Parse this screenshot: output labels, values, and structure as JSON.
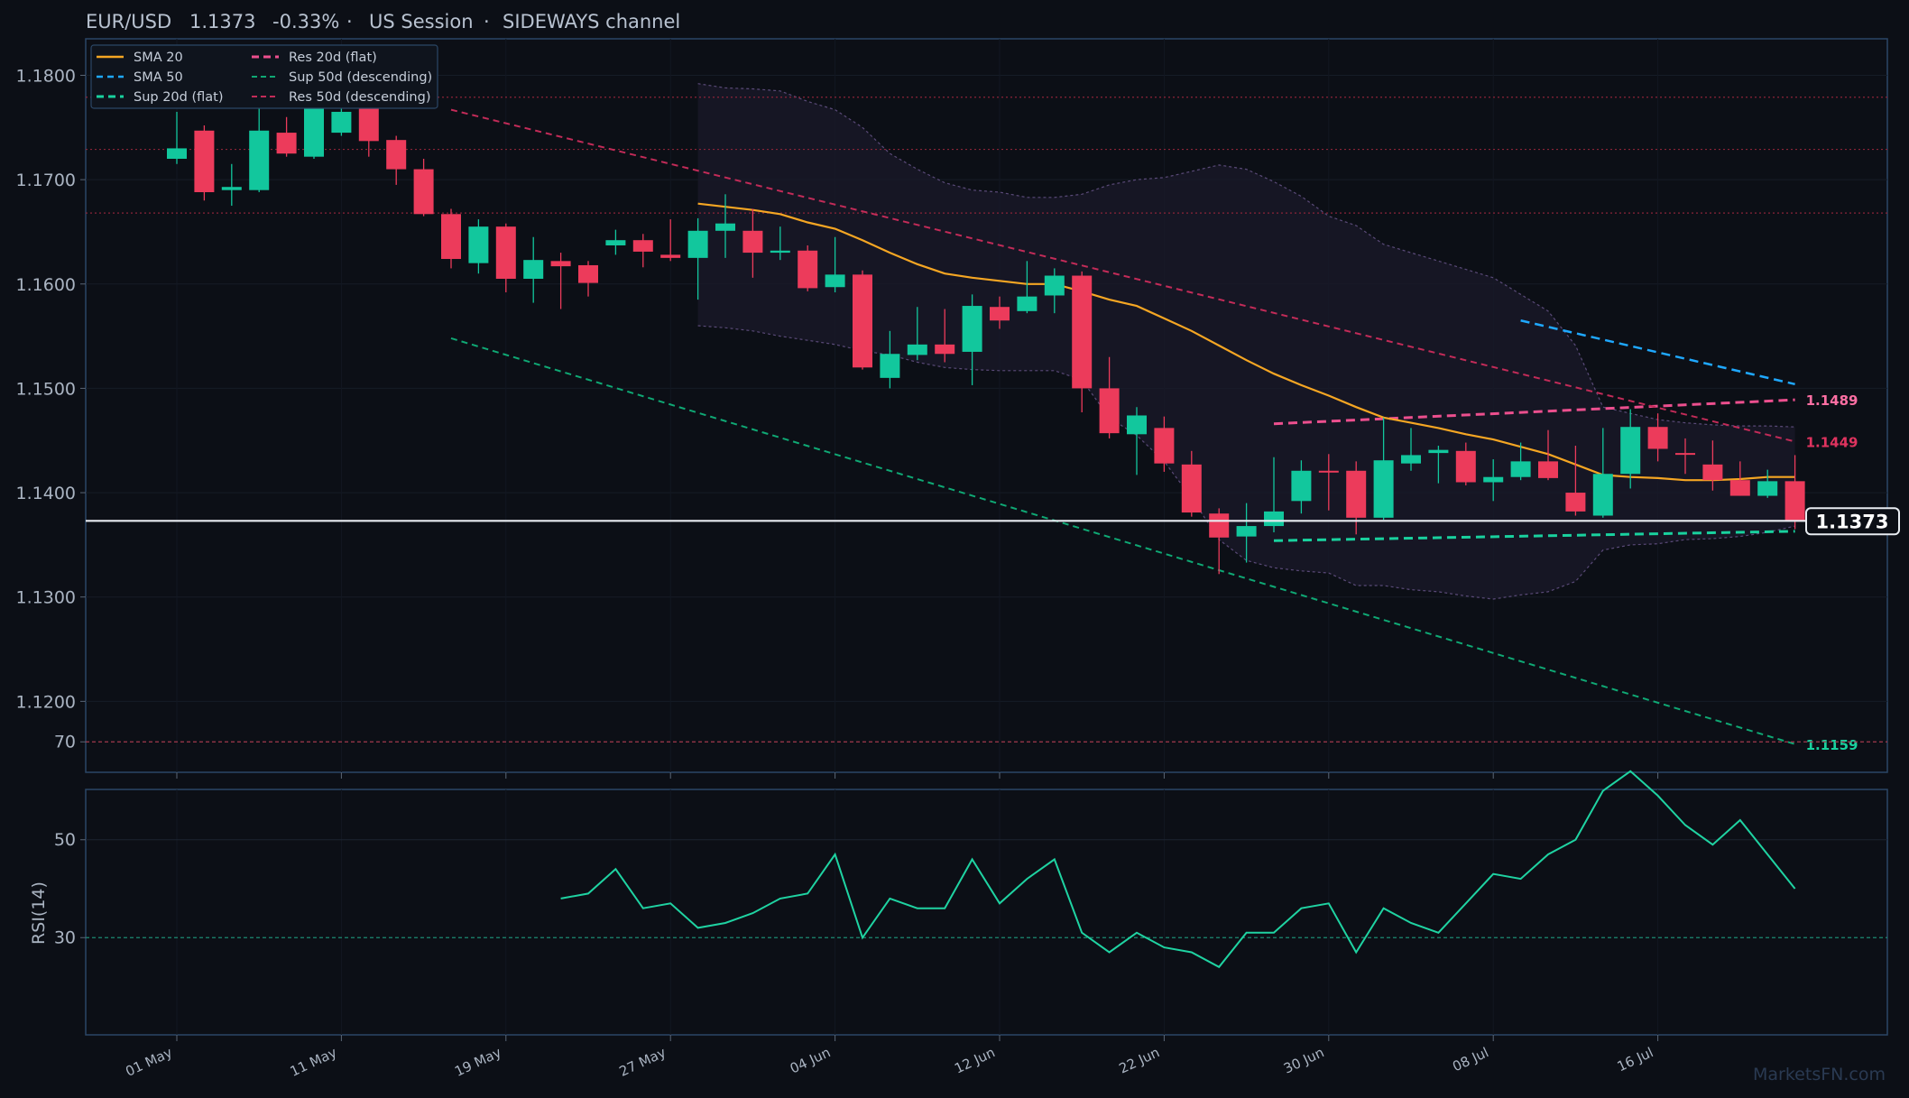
{
  "header": {
    "symbol": "EUR/USD",
    "price": "1.1373",
    "change": "-0.33%",
    "session": "US Session",
    "channel": "SIDEWAYS channel",
    "sep": "·"
  },
  "watermark": "MarketsFN.com",
  "colors": {
    "background": "#0c0f16",
    "up": "#12c79d",
    "down": "#ec3b5b",
    "sma20": "#f5a623",
    "sma50": "#1fa8ff",
    "res20": "#ec4f8e",
    "sup20": "#19d19e",
    "res50": "#c22b58",
    "sup50": "#0fa874",
    "rsi": "#1fd3a2",
    "current": "#e8ecf1"
  },
  "chart_data": {
    "type": "candlestick",
    "title": "EUR/USD",
    "ylim": [
      1.1132,
      1.1835
    ],
    "yticks": [
      1.12,
      1.13,
      1.14,
      1.15,
      1.16,
      1.17,
      1.18
    ],
    "x_tick_labels": [
      "01 May",
      "11 May",
      "19 May",
      "27 May",
      "04 Jun",
      "12 Jun",
      "22 Jun",
      "30 Jun",
      "08 Jul",
      "16 Jul"
    ],
    "x_tick_index": [
      0,
      6,
      12,
      18,
      24,
      30,
      36,
      42,
      48,
      54
    ],
    "candles": [
      {
        "o": 1.172,
        "h": 1.1765,
        "l": 1.1715,
        "c": 1.173
      },
      {
        "o": 1.1747,
        "h": 1.1752,
        "l": 1.168,
        "c": 1.1688
      },
      {
        "o": 1.169,
        "h": 1.1715,
        "l": 1.1675,
        "c": 1.1693
      },
      {
        "o": 1.169,
        "h": 1.178,
        "l": 1.1688,
        "c": 1.1747
      },
      {
        "o": 1.1745,
        "h": 1.176,
        "l": 1.1722,
        "c": 1.1725
      },
      {
        "o": 1.1722,
        "h": 1.179,
        "l": 1.172,
        "c": 1.1785
      },
      {
        "o": 1.1745,
        "h": 1.1785,
        "l": 1.1742,
        "c": 1.1765
      },
      {
        "o": 1.178,
        "h": 1.179,
        "l": 1.1722,
        "c": 1.1737
      },
      {
        "o": 1.1738,
        "h": 1.1742,
        "l": 1.1695,
        "c": 1.171
      },
      {
        "o": 1.171,
        "h": 1.172,
        "l": 1.1665,
        "c": 1.1667
      },
      {
        "o": 1.1667,
        "h": 1.1672,
        "l": 1.1615,
        "c": 1.1624
      },
      {
        "o": 1.162,
        "h": 1.1662,
        "l": 1.161,
        "c": 1.1655
      },
      {
        "o": 1.1655,
        "h": 1.1658,
        "l": 1.1592,
        "c": 1.1605
      },
      {
        "o": 1.1605,
        "h": 1.1645,
        "l": 1.1582,
        "c": 1.1623
      },
      {
        "o": 1.1622,
        "h": 1.163,
        "l": 1.1576,
        "c": 1.1617
      },
      {
        "o": 1.1618,
        "h": 1.1622,
        "l": 1.1588,
        "c": 1.1601
      },
      {
        "o": 1.1637,
        "h": 1.1652,
        "l": 1.1628,
        "c": 1.1642
      },
      {
        "o": 1.1642,
        "h": 1.1648,
        "l": 1.1616,
        "c": 1.1631
      },
      {
        "o": 1.1628,
        "h": 1.1662,
        "l": 1.1622,
        "c": 1.1625
      },
      {
        "o": 1.1625,
        "h": 1.1663,
        "l": 1.1585,
        "c": 1.1651
      },
      {
        "o": 1.1651,
        "h": 1.1686,
        "l": 1.1625,
        "c": 1.1658
      },
      {
        "o": 1.1651,
        "h": 1.1672,
        "l": 1.1606,
        "c": 1.163
      },
      {
        "o": 1.163,
        "h": 1.1655,
        "l": 1.1623,
        "c": 1.1632
      },
      {
        "o": 1.1632,
        "h": 1.1637,
        "l": 1.1593,
        "c": 1.1596
      },
      {
        "o": 1.1597,
        "h": 1.1645,
        "l": 1.1592,
        "c": 1.1609
      },
      {
        "o": 1.1609,
        "h": 1.1613,
        "l": 1.1518,
        "c": 1.152
      },
      {
        "o": 1.151,
        "h": 1.1555,
        "l": 1.15,
        "c": 1.1533
      },
      {
        "o": 1.1532,
        "h": 1.1578,
        "l": 1.1527,
        "c": 1.1542
      },
      {
        "o": 1.1542,
        "h": 1.1576,
        "l": 1.1525,
        "c": 1.1533
      },
      {
        "o": 1.1535,
        "h": 1.159,
        "l": 1.1503,
        "c": 1.1579
      },
      {
        "o": 1.1578,
        "h": 1.1588,
        "l": 1.1557,
        "c": 1.1565
      },
      {
        "o": 1.1574,
        "h": 1.1622,
        "l": 1.1572,
        "c": 1.1588
      },
      {
        "o": 1.1589,
        "h": 1.1615,
        "l": 1.1572,
        "c": 1.1608
      },
      {
        "o": 1.1608,
        "h": 1.1612,
        "l": 1.1477,
        "c": 1.15
      },
      {
        "o": 1.15,
        "h": 1.153,
        "l": 1.1452,
        "c": 1.1457
      },
      {
        "o": 1.1456,
        "h": 1.1482,
        "l": 1.1417,
        "c": 1.1474
      },
      {
        "o": 1.1462,
        "h": 1.1473,
        "l": 1.142,
        "c": 1.1428
      },
      {
        "o": 1.1427,
        "h": 1.144,
        "l": 1.1377,
        "c": 1.1381
      },
      {
        "o": 1.138,
        "h": 1.1385,
        "l": 1.1322,
        "c": 1.1357
      },
      {
        "o": 1.1358,
        "h": 1.139,
        "l": 1.1333,
        "c": 1.1368
      },
      {
        "o": 1.1368,
        "h": 1.1434,
        "l": 1.1362,
        "c": 1.1382
      },
      {
        "o": 1.1392,
        "h": 1.1431,
        "l": 1.138,
        "c": 1.1421
      },
      {
        "o": 1.1421,
        "h": 1.1437,
        "l": 1.1383,
        "c": 1.142
      },
      {
        "o": 1.1421,
        "h": 1.143,
        "l": 1.136,
        "c": 1.1376
      },
      {
        "o": 1.1376,
        "h": 1.1472,
        "l": 1.1374,
        "c": 1.1431
      },
      {
        "o": 1.1428,
        "h": 1.1462,
        "l": 1.1421,
        "c": 1.1436
      },
      {
        "o": 1.1438,
        "h": 1.1445,
        "l": 1.1409,
        "c": 1.1441
      },
      {
        "o": 1.144,
        "h": 1.1448,
        "l": 1.1407,
        "c": 1.141
      },
      {
        "o": 1.141,
        "h": 1.1432,
        "l": 1.1392,
        "c": 1.1415
      },
      {
        "o": 1.1415,
        "h": 1.1448,
        "l": 1.1412,
        "c": 1.143
      },
      {
        "o": 1.143,
        "h": 1.146,
        "l": 1.1412,
        "c": 1.1414
      },
      {
        "o": 1.14,
        "h": 1.1445,
        "l": 1.1378,
        "c": 1.1382
      },
      {
        "o": 1.1378,
        "h": 1.1462,
        "l": 1.1376,
        "c": 1.1418
      },
      {
        "o": 1.1418,
        "h": 1.148,
        "l": 1.1404,
        "c": 1.1463
      },
      {
        "o": 1.1463,
        "h": 1.1476,
        "l": 1.143,
        "c": 1.1442
      },
      {
        "o": 1.1438,
        "h": 1.1452,
        "l": 1.1418,
        "c": 1.1437
      },
      {
        "o": 1.1427,
        "h": 1.145,
        "l": 1.1402,
        "c": 1.1412
      },
      {
        "o": 1.1412,
        "h": 1.143,
        "l": 1.1397,
        "c": 1.1397
      },
      {
        "o": 1.1397,
        "h": 1.1422,
        "l": 1.1395,
        "c": 1.1411
      },
      {
        "o": 1.1411,
        "h": 1.1436,
        "l": 1.1365,
        "c": 1.1373
      }
    ],
    "sma20": {
      "start": 19,
      "values": [
        1.1677,
        1.1674,
        1.1671,
        1.1667,
        1.1659,
        1.1653,
        1.1642,
        1.163,
        1.1619,
        1.161,
        1.1606,
        1.1603,
        1.16,
        1.16,
        1.1593,
        1.1585,
        1.1579,
        1.1567,
        1.1555,
        1.1541,
        1.1527,
        1.1514,
        1.1503,
        1.1493,
        1.1482,
        1.1472,
        1.1467,
        1.1462,
        1.1456,
        1.1451,
        1.1444,
        1.1437,
        1.1427,
        1.1417,
        1.1415,
        1.1414,
        1.1412,
        1.1412,
        1.1413,
        1.1415,
        1.1415
      ]
    },
    "sma50": {
      "start": 49,
      "end": 59,
      "from": 1.1565,
      "to": 1.1504
    },
    "bollinger": {
      "start": 19,
      "upper": [
        1.1792,
        1.1788,
        1.1787,
        1.1785,
        1.1775,
        1.1767,
        1.175,
        1.1725,
        1.171,
        1.1697,
        1.169,
        1.1688,
        1.1683,
        1.1683,
        1.1686,
        1.1695,
        1.17,
        1.1702,
        1.1708,
        1.1714,
        1.171,
        1.1698,
        1.1684,
        1.1665,
        1.1656,
        1.1638,
        1.163,
        1.1622,
        1.1614,
        1.1606,
        1.159,
        1.1574,
        1.1541,
        1.1482,
        1.1476,
        1.147,
        1.1467,
        1.1465,
        1.1464,
        1.1464,
        1.1463
      ],
      "lower": [
        1.156,
        1.1558,
        1.1555,
        1.155,
        1.1546,
        1.1542,
        1.1536,
        1.1532,
        1.1525,
        1.152,
        1.1518,
        1.1517,
        1.1517,
        1.1517,
        1.1508,
        1.1472,
        1.1455,
        1.143,
        1.1395,
        1.1355,
        1.1335,
        1.1328,
        1.1325,
        1.1323,
        1.1311,
        1.1311,
        1.1307,
        1.1305,
        1.1301,
        1.1298,
        1.1302,
        1.1305,
        1.1315,
        1.1345,
        1.135,
        1.1351,
        1.1355,
        1.1356,
        1.1358,
        1.1362,
        1.1368
      ]
    },
    "levels": [
      {
        "name": "Res 20d (flat)",
        "start": 40,
        "end": 59,
        "from": 1.1466,
        "to": 1.1489,
        "label": "1.1489"
      },
      {
        "name": "Res 50d (descending)",
        "start": 10,
        "end": 59,
        "from": 1.1767,
        "to": 1.1449,
        "label": "1.1449"
      },
      {
        "name": "Sup 20d (flat)",
        "start": 40,
        "end": 59,
        "from": 1.1354,
        "to": 1.1363,
        "label": ""
      },
      {
        "name": "Sup 50d (descending)",
        "start": 10,
        "end": 59,
        "from": 1.1548,
        "to": 1.1159,
        "label": "1.1159"
      }
    ],
    "hlines": [
      1.1779,
      1.1729,
      1.1668
    ],
    "current_price": 1.1373,
    "current_label": "1.1373",
    "legend": [
      "SMA 20",
      "SMA 50",
      "Sup 20d (flat)",
      "Res 20d (flat)",
      "Sup 50d (descending)",
      "Res 50d (descending)"
    ],
    "rsi": {
      "ylabel": "RSI(14)",
      "yticks": [
        30,
        50,
        70
      ],
      "ylim": [
        0,
        100
      ],
      "start": 14,
      "values": [
        38,
        39,
        44,
        36,
        37,
        32,
        33,
        35,
        38,
        39,
        47,
        30,
        38,
        36,
        36,
        46,
        37,
        42,
        46,
        31,
        27,
        31,
        28,
        27,
        24,
        31,
        31,
        36,
        37,
        27,
        36,
        33,
        31,
        37,
        43,
        42,
        47,
        50,
        60,
        64,
        59,
        53,
        49,
        54,
        47,
        40
      ]
    }
  }
}
